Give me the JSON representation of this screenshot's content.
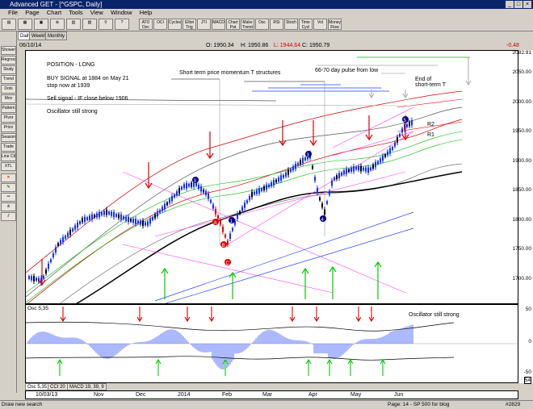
{
  "app": {
    "title": "Advanced GET - [^GSPC, Daily]"
  },
  "menu": [
    "File",
    "Page",
    "Chart",
    "Tools",
    "View",
    "Window",
    "Help"
  ],
  "toolbar": [
    "ATO Osc",
    "OCI",
    "Cycles",
    "Elliot Trig",
    "JTI",
    "MACD",
    "Chart Pat",
    "Make Trend",
    "Osc",
    "RSI",
    "Stoch",
    "Time Cycl",
    "Vol",
    "Money Flow"
  ],
  "left_tools": [
    "Shower",
    "Regress",
    "Study",
    "Trend",
    "Dots",
    "Mov Ave",
    "Pattern",
    "Pivot",
    "Price Chart",
    "Seasonal",
    "Trade Profile",
    "Line Ctl",
    "XTL"
  ],
  "chart_tabs": [
    "Daily",
    "Weekly",
    "Monthly"
  ],
  "date_label": "06/10/14",
  "ohlc": {
    "o": "O: 1950.34",
    "h": "H: 1950.86",
    "l": "L: 1944.64",
    "c": "C: 1950.79"
  },
  "change": "-0.48",
  "price_labels": [
    "2082.91",
    "2050.00",
    "2000.00",
    "1950.00",
    "1900.00",
    "1850.00",
    "1800.00",
    "1750.00",
    "1700.00"
  ],
  "osc_labels": [
    "50",
    "0",
    "-50",
    "54"
  ],
  "annotations": {
    "position": "POSITION - LONG",
    "buy_signal": "BUY SIGNAL at 1884 on May 21",
    "stop": "stop now at 1939",
    "sell_signal": "Sell signal - IF close below 1906",
    "osc_strong": "Oscillator still strong",
    "momentum": "Short term price momentum T structures",
    "pulse": "66-70 day pulse from low",
    "end_short": "End of short-term T",
    "r2": "R2",
    "r1": "R1",
    "osc_strong2": "Oscillator still strong"
  },
  "osc_title": "Osc 5,35",
  "osc_tabs": [
    "Osc 5,35",
    "CCI 20",
    "MACD 19, 39, 9"
  ],
  "x_labels": [
    "10/03/13",
    "Nov",
    "Dec",
    "2014",
    "Feb",
    "Mar",
    "Apr",
    "May",
    "Jun"
  ],
  "status": {
    "left": "Draw new search",
    "page": "Page: 14 - SP 500 for blog",
    "count": "#2829"
  },
  "colors": {
    "red_arrow": "#e00000",
    "green_arrow": "#00cc00",
    "envelope": "#e00000",
    "pink": "#ff40ff",
    "blue_line": "#2040ff"
  }
}
